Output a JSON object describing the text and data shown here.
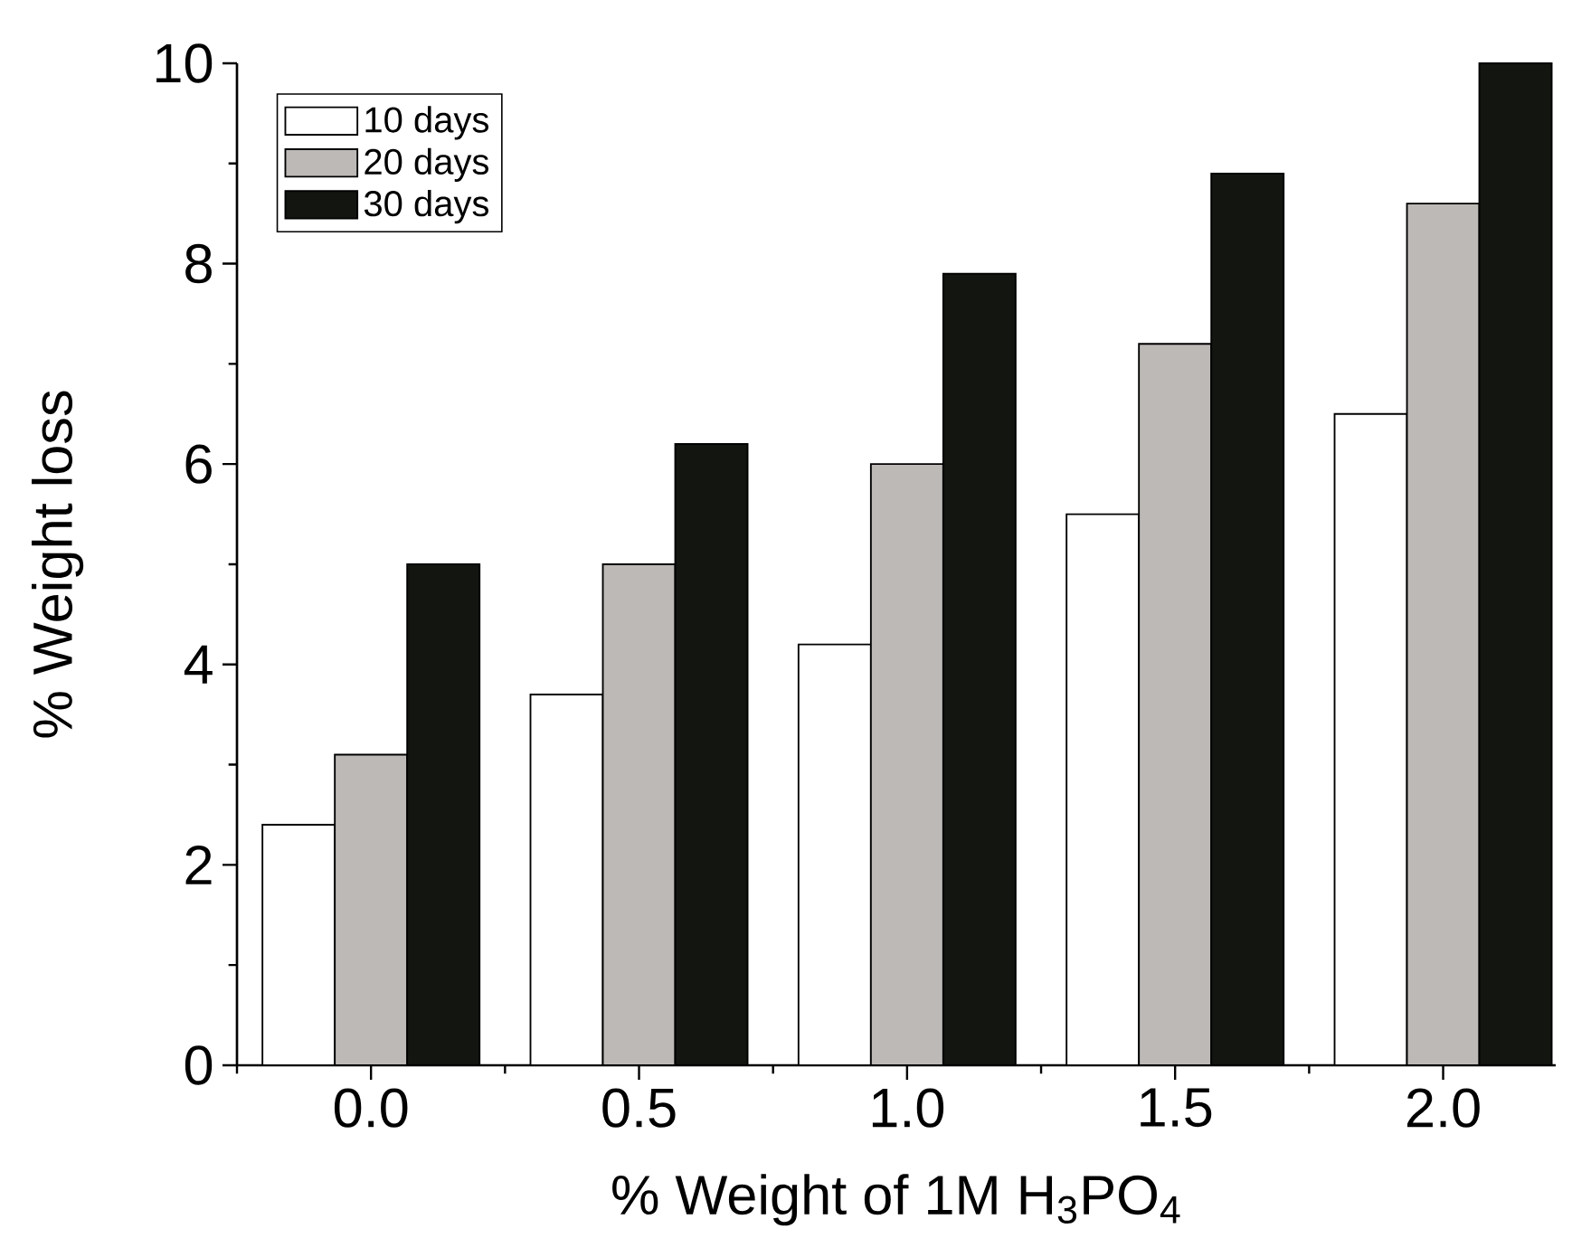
{
  "chart_data": {
    "type": "bar",
    "xlabel": "% Weight of 1M H$_{3}$PO$_{4}$",
    "ylabel": "% Weight loss",
    "categories": [
      "0.0",
      "0.5",
      "1.0",
      "1.5",
      "2.0"
    ],
    "series": [
      {
        "name": "10 days",
        "color": "#ffffff",
        "values": [
          2.4,
          3.7,
          4.2,
          5.5,
          6.5
        ]
      },
      {
        "name": "20 days",
        "color": "#bdb9b6",
        "values": [
          3.1,
          5.0,
          6.0,
          7.2,
          8.6
        ]
      },
      {
        "name": "30 days",
        "color": "#121510",
        "values": [
          5.0,
          6.2,
          7.9,
          8.9,
          10.0
        ]
      }
    ],
    "ylim": [
      0,
      10
    ],
    "yticks": [
      0,
      2,
      4,
      6,
      8,
      10
    ],
    "legend": "top left",
    "grid": false
  }
}
